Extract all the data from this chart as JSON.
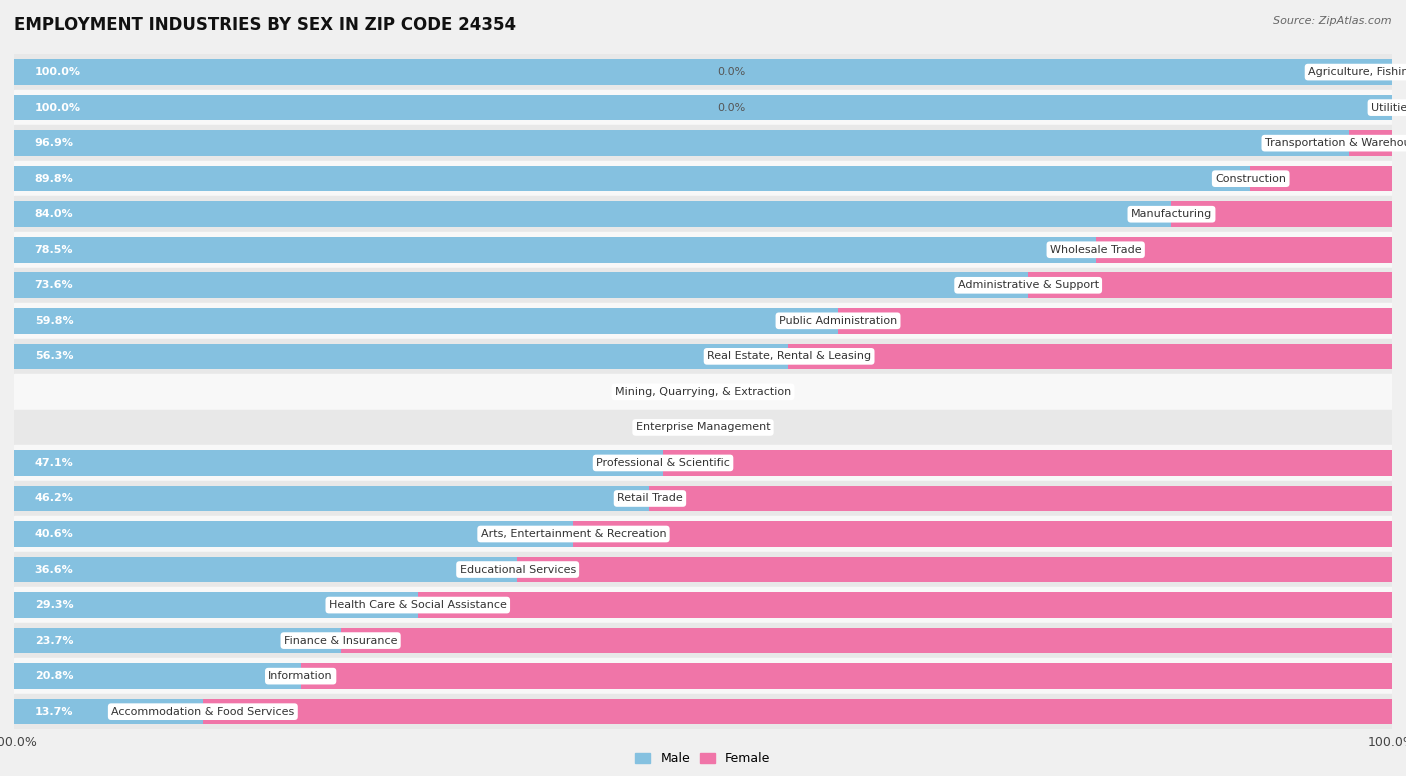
{
  "title": "EMPLOYMENT INDUSTRIES BY SEX IN ZIP CODE 24354",
  "source": "Source: ZipAtlas.com",
  "categories": [
    "Agriculture, Fishing & Hunting",
    "Utilities",
    "Transportation & Warehousing",
    "Construction",
    "Manufacturing",
    "Wholesale Trade",
    "Administrative & Support",
    "Public Administration",
    "Real Estate, Rental & Leasing",
    "Mining, Quarrying, & Extraction",
    "Enterprise Management",
    "Professional & Scientific",
    "Retail Trade",
    "Arts, Entertainment & Recreation",
    "Educational Services",
    "Health Care & Social Assistance",
    "Finance & Insurance",
    "Information",
    "Accommodation & Food Services"
  ],
  "male": [
    100.0,
    100.0,
    96.9,
    89.8,
    84.0,
    78.5,
    73.6,
    59.8,
    56.3,
    0.0,
    0.0,
    47.1,
    46.2,
    40.6,
    36.6,
    29.3,
    23.7,
    20.8,
    13.7
  ],
  "female": [
    0.0,
    0.0,
    3.1,
    10.3,
    16.0,
    21.5,
    26.4,
    40.2,
    43.8,
    0.0,
    0.0,
    52.9,
    53.9,
    59.4,
    63.5,
    70.7,
    76.3,
    79.2,
    86.3
  ],
  "male_color": "#85c1e0",
  "female_color": "#f075a8",
  "bg_color": "#f0f0f0",
  "row_color_light": "#e8e8e8",
  "row_color_white": "#f8f8f8",
  "title_fontsize": 12,
  "label_fontsize": 8,
  "cat_fontsize": 8,
  "bar_height": 0.72,
  "legend_male": "Male",
  "legend_female": "Female"
}
